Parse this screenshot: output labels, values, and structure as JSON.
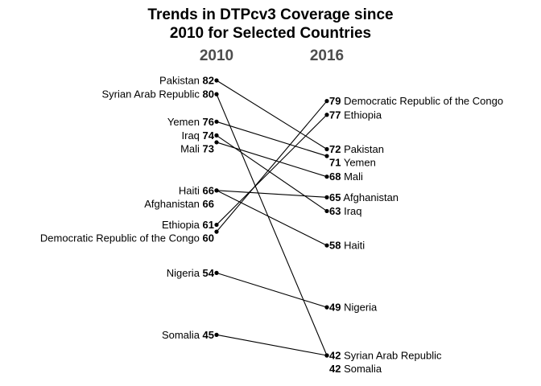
{
  "chart_data": {
    "type": "slope",
    "title_lines": [
      "Trends in DTPcv3 Coverage since",
      "2010 for Selected Countries"
    ],
    "x": [
      "2010",
      "2016"
    ],
    "series": [
      {
        "name": "Pakistan",
        "values": [
          82,
          72
        ]
      },
      {
        "name": "Syrian Arab Republic",
        "values": [
          80,
          42
        ]
      },
      {
        "name": "Yemen",
        "values": [
          76,
          71
        ]
      },
      {
        "name": "Iraq",
        "values": [
          74,
          63
        ]
      },
      {
        "name": "Mali",
        "values": [
          73,
          68
        ]
      },
      {
        "name": "Haiti",
        "values": [
          66,
          58
        ]
      },
      {
        "name": "Afghanistan",
        "values": [
          66,
          65
        ]
      },
      {
        "name": "Ethiopia",
        "values": [
          61,
          77
        ]
      },
      {
        "name": "Democratic Republic of the Congo",
        "values": [
          60,
          79
        ]
      },
      {
        "name": "Nigeria",
        "values": [
          54,
          49
        ]
      },
      {
        "name": "Somalia",
        "values": [
          45,
          42
        ]
      }
    ]
  }
}
